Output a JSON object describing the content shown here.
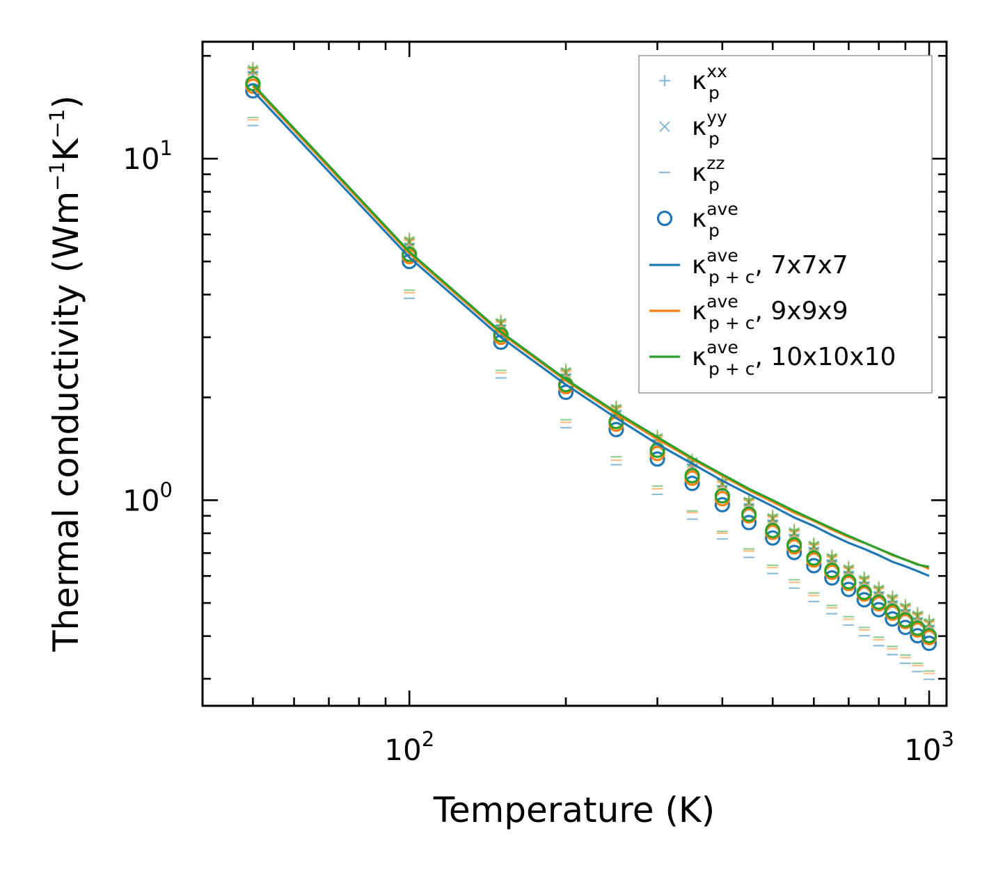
{
  "chart_data": {
    "type": "scatter+line",
    "xscale": "log",
    "yscale": "log",
    "xlim": [
      40,
      1080
    ],
    "ylim": [
      0.25,
      22
    ],
    "xlabel": "Temperature (K)",
    "ylabel": "Thermal conductivity (Wm⁻¹K⁻¹)",
    "ylabel_parts": {
      "base": "Thermal conductivity (Wm",
      "exp1": "−1",
      "mid": "K",
      "exp2": "−1",
      "end": ")"
    },
    "xticks": [
      {
        "value": 100,
        "base": "10",
        "exp": "2"
      },
      {
        "value": 1000,
        "base": "10",
        "exp": "3"
      }
    ],
    "yticks": [
      {
        "value": 1,
        "base": "10",
        "exp": "0"
      },
      {
        "value": 10,
        "base": "10",
        "exp": "1"
      }
    ],
    "x": [
      50,
      100,
      150,
      200,
      250,
      300,
      350,
      400,
      450,
      500,
      550,
      600,
      650,
      700,
      750,
      800,
      850,
      900,
      950,
      1000
    ],
    "series": [
      {
        "name": "7x7x7",
        "color": "#1f77b4",
        "kxx": [
          17.9,
          5.62,
          3.25,
          2.33,
          1.82,
          1.5,
          1.27,
          1.1,
          0.97,
          0.87,
          0.79,
          0.722,
          0.664,
          0.615,
          0.573,
          0.536,
          0.504,
          0.476,
          0.45,
          0.428
        ],
        "kyy": [
          17.5,
          5.5,
          3.17,
          2.28,
          1.78,
          1.46,
          1.24,
          1.07,
          0.95,
          0.85,
          0.772,
          0.706,
          0.65,
          0.602,
          0.56,
          0.524,
          0.493,
          0.465,
          0.44,
          0.418
        ],
        "kzz": [
          12.5,
          3.9,
          2.28,
          1.63,
          1.27,
          1.04,
          0.88,
          0.77,
          0.68,
          0.61,
          0.553,
          0.505,
          0.465,
          0.431,
          0.401,
          0.375,
          0.353,
          0.333,
          0.315,
          0.299
        ],
        "kave": [
          15.8,
          5.0,
          2.9,
          2.07,
          1.61,
          1.32,
          1.12,
          0.97,
          0.86,
          0.775,
          0.703,
          0.643,
          0.592,
          0.548,
          0.511,
          0.478,
          0.449,
          0.424,
          0.401,
          0.381
        ],
        "kpc": [
          15.8,
          5.14,
          3.0,
          2.18,
          1.74,
          1.46,
          1.28,
          1.14,
          1.04,
          0.96,
          0.89,
          0.84,
          0.79,
          0.75,
          0.72,
          0.69,
          0.66,
          0.64,
          0.62,
          0.6
        ]
      },
      {
        "name": "9x9x9",
        "color": "#ff7f0e",
        "kxx": [
          18.3,
          5.78,
          3.33,
          2.39,
          1.87,
          1.53,
          1.3,
          1.13,
          1.0,
          0.895,
          0.812,
          0.742,
          0.683,
          0.633,
          0.59,
          0.552,
          0.519,
          0.49,
          0.464,
          0.441
        ],
        "kyy": [
          18.0,
          5.66,
          3.27,
          2.34,
          1.83,
          1.5,
          1.27,
          1.11,
          0.98,
          0.876,
          0.795,
          0.727,
          0.669,
          0.62,
          0.577,
          0.54,
          0.508,
          0.479,
          0.454,
          0.431
        ],
        "kzz": [
          13.0,
          4.05,
          2.36,
          1.69,
          1.31,
          1.08,
          0.92,
          0.8,
          0.71,
          0.635,
          0.575,
          0.526,
          0.484,
          0.448,
          0.417,
          0.39,
          0.367,
          0.346,
          0.328,
          0.311
        ],
        "kave": [
          16.3,
          5.17,
          3.0,
          2.15,
          1.67,
          1.37,
          1.16,
          1.01,
          0.9,
          0.805,
          0.73,
          0.668,
          0.615,
          0.57,
          0.531,
          0.497,
          0.467,
          0.441,
          0.417,
          0.396
        ],
        "kpc": [
          16.3,
          5.28,
          3.08,
          2.24,
          1.79,
          1.51,
          1.32,
          1.18,
          1.07,
          0.99,
          0.92,
          0.87,
          0.82,
          0.78,
          0.75,
          0.72,
          0.69,
          0.67,
          0.65,
          0.63
        ]
      },
      {
        "name": "10x10x10",
        "color": "#2ca02c",
        "kxx": [
          18.5,
          5.85,
          3.37,
          2.42,
          1.89,
          1.55,
          1.32,
          1.15,
          1.01,
          0.905,
          0.821,
          0.75,
          0.691,
          0.64,
          0.596,
          0.558,
          0.525,
          0.495,
          0.469,
          0.446
        ],
        "kyy": [
          18.2,
          5.73,
          3.3,
          2.37,
          1.85,
          1.52,
          1.29,
          1.12,
          0.99,
          0.886,
          0.804,
          0.735,
          0.677,
          0.627,
          0.584,
          0.547,
          0.514,
          0.485,
          0.459,
          0.436
        ],
        "kzz": [
          13.2,
          4.12,
          2.4,
          1.72,
          1.34,
          1.1,
          0.93,
          0.81,
          0.72,
          0.645,
          0.585,
          0.535,
          0.492,
          0.456,
          0.424,
          0.397,
          0.373,
          0.352,
          0.333,
          0.316
        ],
        "kave": [
          16.6,
          5.25,
          3.05,
          2.18,
          1.7,
          1.4,
          1.18,
          1.03,
          0.91,
          0.815,
          0.74,
          0.677,
          0.623,
          0.577,
          0.537,
          0.503,
          0.473,
          0.446,
          0.422,
          0.401
        ],
        "kpc": [
          16.5,
          5.34,
          3.11,
          2.26,
          1.81,
          1.53,
          1.33,
          1.19,
          1.08,
          1.0,
          0.93,
          0.875,
          0.827,
          0.786,
          0.751,
          0.72,
          0.693,
          0.669,
          0.648,
          0.638
        ]
      }
    ],
    "legend": {
      "position": "top-right",
      "entries": [
        {
          "marker": "plus",
          "color": "#1f77b4",
          "base": "κ",
          "sub": "p",
          "sup": "xx",
          "suffix": ""
        },
        {
          "marker": "x",
          "color": "#1f77b4",
          "base": "κ",
          "sub": "p",
          "sup": "yy",
          "suffix": ""
        },
        {
          "marker": "dash",
          "color": "#1f77b4",
          "base": "κ",
          "sub": "p",
          "sup": "zz",
          "suffix": ""
        },
        {
          "marker": "circle",
          "color": "#1f77b4",
          "base": "κ",
          "sub": "p",
          "sup": "ave",
          "suffix": ""
        },
        {
          "marker": "line",
          "color": "#1f77b4",
          "base": "κ",
          "sub": "p + c",
          "sup": "ave",
          "suffix": ", 7x7x7"
        },
        {
          "marker": "line",
          "color": "#ff7f0e",
          "base": "κ",
          "sub": "p + c",
          "sup": "ave",
          "suffix": ", 9x9x9"
        },
        {
          "marker": "line",
          "color": "#2ca02c",
          "base": "κ",
          "sub": "p + c",
          "sup": "ave",
          "suffix": ", 10x10x10"
        }
      ]
    }
  }
}
